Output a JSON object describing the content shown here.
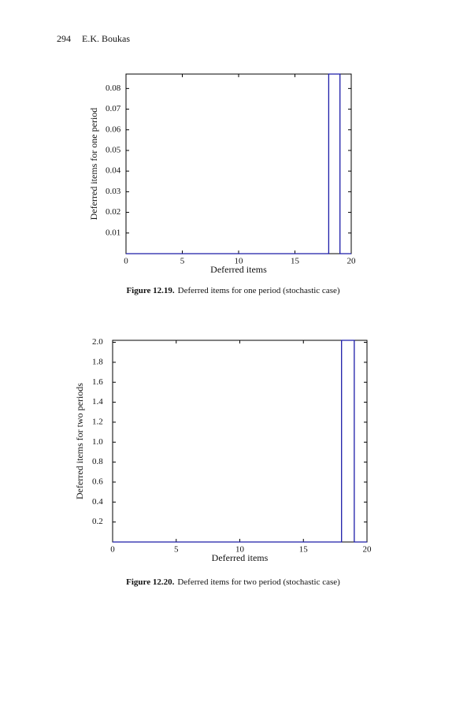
{
  "header": {
    "page": "294",
    "author": "E.K. Boukas"
  },
  "chart_data": [
    {
      "type": "line",
      "x_label": "Deferred items",
      "y_label": "Deferred items for one period",
      "caption_label": "Figure 12.19.",
      "caption": "Deferred items for one period (stochastic case)",
      "x": [
        0,
        18,
        18,
        19,
        19,
        20
      ],
      "values": [
        0,
        0,
        0.087,
        0.087,
        0,
        0
      ],
      "color": "#1c1ca8",
      "xlim": [
        0,
        20
      ],
      "xticks": [
        0,
        5,
        10,
        15,
        20
      ],
      "ylim": [
        0,
        0.087
      ],
      "yticks": [
        0.01,
        0.02,
        0.03,
        0.04,
        0.05,
        0.06,
        0.07,
        0.08
      ],
      "grid": false
    },
    {
      "type": "line",
      "x_label": "Deferred items",
      "y_label": "Deferred items for two periods",
      "caption_label": "Figure 12.20.",
      "caption": "Deferred items for two period (stochastic case)",
      "x": [
        0,
        18,
        18,
        19,
        19,
        20
      ],
      "values": [
        0,
        0,
        2.02,
        2.02,
        0,
        0
      ],
      "color": "#1c1ca8",
      "xlim": [
        0,
        20
      ],
      "xticks": [
        0,
        5,
        10,
        15,
        20
      ],
      "ylim": [
        0,
        2.02
      ],
      "yticks": [
        0.2,
        0.4,
        0.6,
        0.8,
        {
          "value": 1,
          "label": "1.0"
        },
        1.2,
        1.4,
        1.6,
        1.8,
        {
          "value": 2,
          "label": "2.0"
        }
      ],
      "grid": false
    }
  ]
}
